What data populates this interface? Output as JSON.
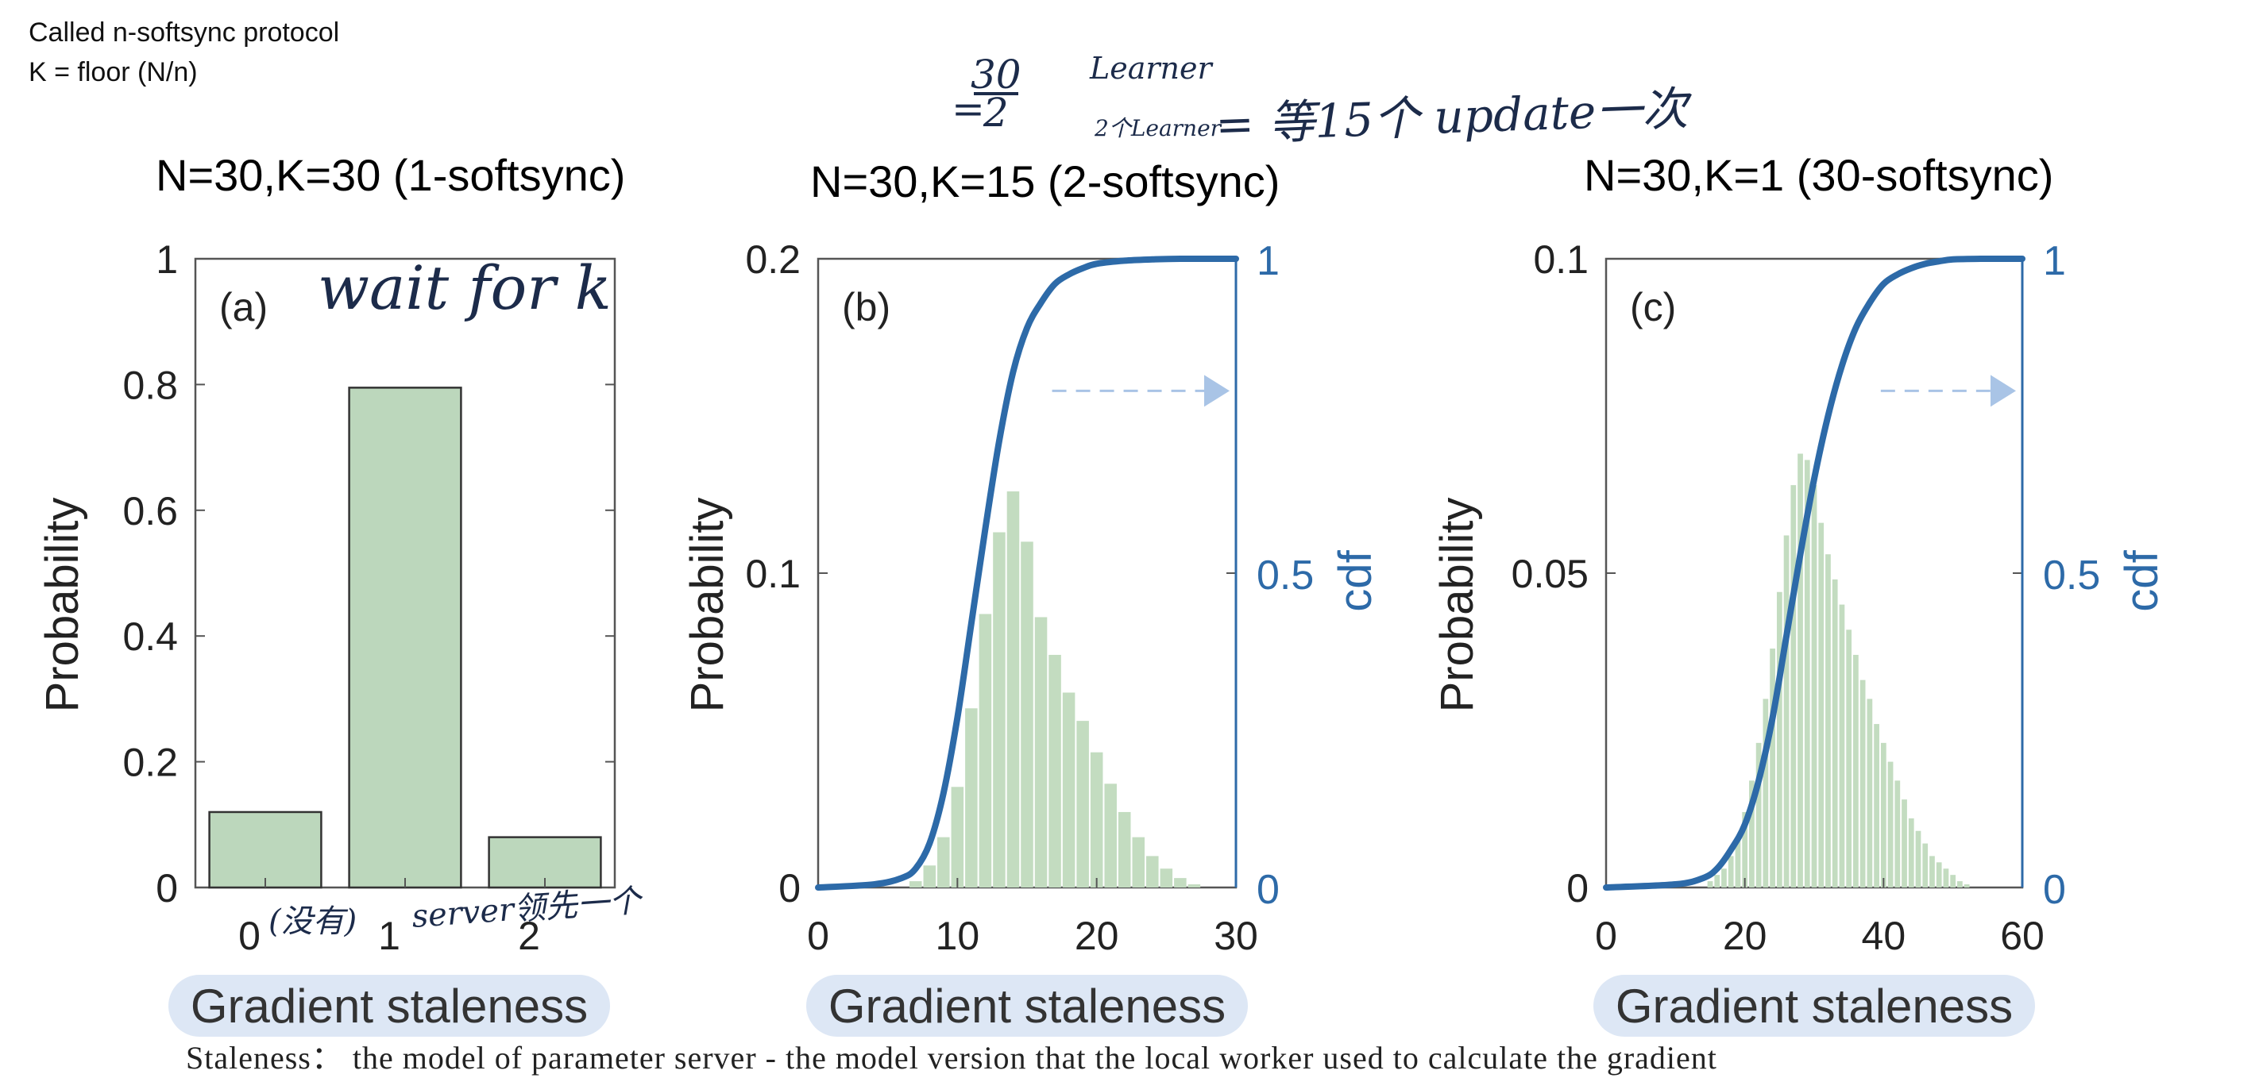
{
  "notes": {
    "line1": "Called n-softsync protocol",
    "line2": "K = floor (N/n)"
  },
  "annotations": {
    "top_fraction_num": "30",
    "top_fraction_den": "2",
    "top_learner": "Learner",
    "top_small": "2个Learner",
    "top_rest": "= 等15个 update一次",
    "wait_for_k": "wait for k",
    "low_left": "(没有)",
    "server_note": "server领先一个"
  },
  "footer": "Staleness： the model of parameter server - the model version that the local worker used to calculate the gradient",
  "colors": {
    "bar_fill": "#bcd7bc",
    "bar_edge": "#333333",
    "hist_fill": "#c3dcc0",
    "cdf_line": "#2d6aa8",
    "dash_arrow": "#a9c4e6",
    "xlabel_highlight": "#dde7f5",
    "hand_ink": "#1c2b4a"
  },
  "chart_data": [
    {
      "type": "bar",
      "title": "N=30,K=30 (1-softsync)",
      "panel_label": "(a)",
      "categories": [
        "0",
        "1",
        "2"
      ],
      "values": [
        0.12,
        0.795,
        0.08
      ],
      "xlabel": "Gradient staleness",
      "ylabel": "Probability",
      "ylim": [
        0,
        1
      ],
      "yticks": [
        "0",
        "0.2",
        "0.4",
        "0.6",
        "0.8",
        "1"
      ]
    },
    {
      "type": "bar",
      "title": "N=30,K=15 (2-softsync)",
      "panel_label": "(b)",
      "x": [
        7,
        8,
        9,
        10,
        11,
        12,
        13,
        14,
        15,
        16,
        17,
        18,
        19,
        20,
        21,
        22,
        23,
        24,
        25,
        26,
        27
      ],
      "values": [
        0.002,
        0.007,
        0.016,
        0.032,
        0.057,
        0.087,
        0.113,
        0.126,
        0.11,
        0.086,
        0.074,
        0.062,
        0.053,
        0.043,
        0.033,
        0.024,
        0.016,
        0.01,
        0.006,
        0.003,
        0.001
      ],
      "cdf": {
        "name": "cdf",
        "x": [
          0,
          4,
          6,
          7,
          8,
          9,
          10,
          11,
          12,
          13,
          14,
          15,
          16,
          17,
          18,
          19,
          20,
          22,
          24,
          26,
          30
        ],
        "y": [
          0,
          0.005,
          0.015,
          0.03,
          0.07,
          0.15,
          0.27,
          0.42,
          0.57,
          0.71,
          0.82,
          0.89,
          0.93,
          0.96,
          0.975,
          0.985,
          0.992,
          0.997,
          0.999,
          1,
          1
        ]
      },
      "xlabel": "Gradient staleness",
      "ylabel": "Probability",
      "y2label": "cdf",
      "xlim": [
        0,
        30
      ],
      "ylim": [
        0,
        0.2
      ],
      "y2lim": [
        0,
        1
      ],
      "xticks": [
        "0",
        "10",
        "20",
        "30"
      ],
      "yticks": [
        "0",
        "0.1",
        "0.2"
      ],
      "y2ticks": [
        "0",
        "0.5",
        "1"
      ]
    },
    {
      "type": "bar",
      "title": "N=30,K=1 (30-softsync)",
      "panel_label": "(c)",
      "x": [
        15,
        16,
        17,
        18,
        19,
        20,
        21,
        22,
        23,
        24,
        25,
        26,
        27,
        28,
        29,
        30,
        31,
        32,
        33,
        34,
        35,
        36,
        37,
        38,
        39,
        40,
        41,
        42,
        43,
        44,
        45,
        46,
        47,
        48,
        49,
        50,
        51,
        52
      ],
      "values": [
        0.001,
        0.002,
        0.003,
        0.005,
        0.008,
        0.012,
        0.017,
        0.023,
        0.03,
        0.038,
        0.047,
        0.056,
        0.064,
        0.069,
        0.068,
        0.064,
        0.058,
        0.053,
        0.049,
        0.045,
        0.041,
        0.037,
        0.033,
        0.03,
        0.026,
        0.023,
        0.02,
        0.017,
        0.014,
        0.011,
        0.009,
        0.007,
        0.005,
        0.004,
        0.003,
        0.002,
        0.001,
        0.0005
      ],
      "cdf": {
        "name": "cdf",
        "x": [
          0,
          10,
          14,
          16,
          18,
          20,
          22,
          24,
          26,
          28,
          30,
          32,
          34,
          36,
          38,
          40,
          42,
          44,
          46,
          48,
          50,
          54,
          60
        ],
        "y": [
          0,
          0.005,
          0.015,
          0.03,
          0.06,
          0.1,
          0.17,
          0.27,
          0.4,
          0.53,
          0.65,
          0.75,
          0.83,
          0.89,
          0.93,
          0.96,
          0.975,
          0.985,
          0.992,
          0.996,
          0.999,
          1,
          1
        ]
      },
      "xlabel": "Gradient staleness",
      "ylabel": "Probability",
      "y2label": "cdf",
      "xlim": [
        0,
        60
      ],
      "ylim": [
        0,
        0.1
      ],
      "y2lim": [
        0,
        1
      ],
      "xticks": [
        "0",
        "20",
        "40",
        "60"
      ],
      "yticks": [
        "0",
        "0.05",
        "0.1"
      ],
      "y2ticks": [
        "0",
        "0.5",
        "1"
      ]
    }
  ]
}
